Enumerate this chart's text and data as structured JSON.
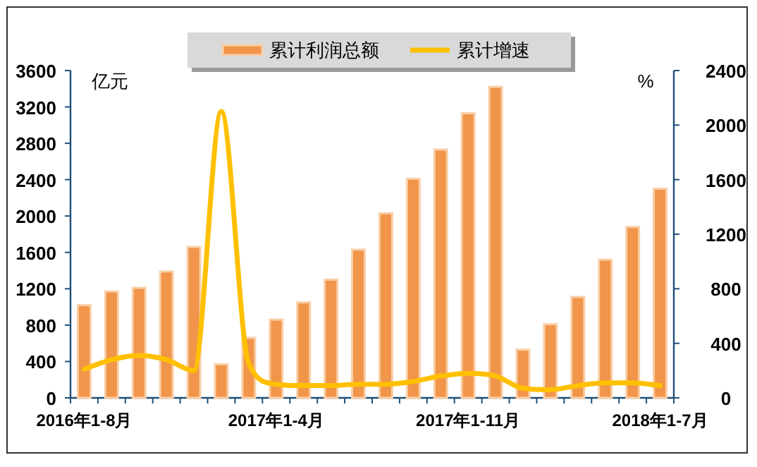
{
  "chart_data": {
    "type": "bar",
    "categories": [
      "2016年1-8月",
      null,
      null,
      null,
      null,
      null,
      null,
      "2017年1-4月",
      null,
      null,
      null,
      null,
      null,
      null,
      "2017年1-11月",
      null,
      null,
      null,
      null,
      null,
      null,
      "2018年1-7月"
    ],
    "series": [
      {
        "name": "累计利润总额",
        "color": "#f0954a",
        "values": [
          1020,
          1170,
          1210,
          1390,
          1660,
          370,
          660,
          860,
          1050,
          1300,
          1630,
          2030,
          2410,
          2730,
          3130,
          3420,
          530,
          810,
          1110,
          1520,
          1880,
          2300
        ]
      },
      {
        "name": "累计增速",
        "type": "line",
        "axis": "y2",
        "color": "#ffc000",
        "values": [
          210,
          280,
          310,
          280,
          200,
          2100,
          250,
          100,
          90,
          90,
          100,
          100,
          120,
          160,
          180,
          160,
          70,
          60,
          90,
          110,
          110,
          90
        ]
      }
    ],
    "ylabel": "亿元",
    "y2label": "%",
    "ylim": [
      0,
      3600
    ],
    "yticks": [
      0,
      400,
      800,
      1200,
      1600,
      2000,
      2400,
      2800,
      3200,
      3600
    ],
    "y2lim": [
      0,
      2400
    ],
    "y2ticks": [
      0,
      400,
      800,
      1200,
      1600,
      2000,
      2400
    ],
    "legend": "top"
  }
}
